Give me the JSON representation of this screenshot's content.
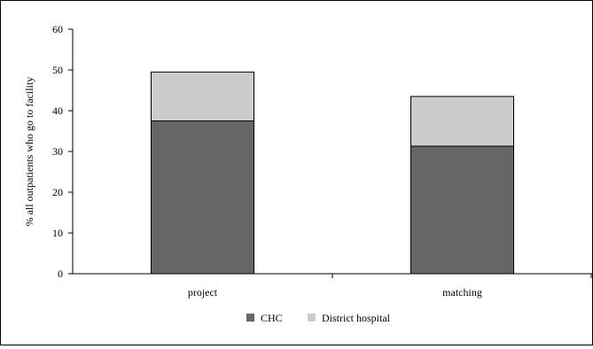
{
  "chart_data": {
    "type": "bar",
    "stacked": true,
    "categories": [
      "project",
      "matching"
    ],
    "series": [
      {
        "name": "CHC",
        "values": [
          37.5,
          31.3
        ],
        "color": "#666666"
      },
      {
        "name": "District hospital",
        "values": [
          12.0,
          12.2
        ],
        "color": "#cccccc"
      }
    ],
    "title": "",
    "xlabel": "",
    "ylabel": "% all outpatients who go to facility",
    "ylim": [
      0,
      60
    ],
    "yticks": [
      0,
      10,
      20,
      30,
      40,
      50,
      60
    ],
    "grid": false,
    "legend_position": "bottom-center"
  }
}
